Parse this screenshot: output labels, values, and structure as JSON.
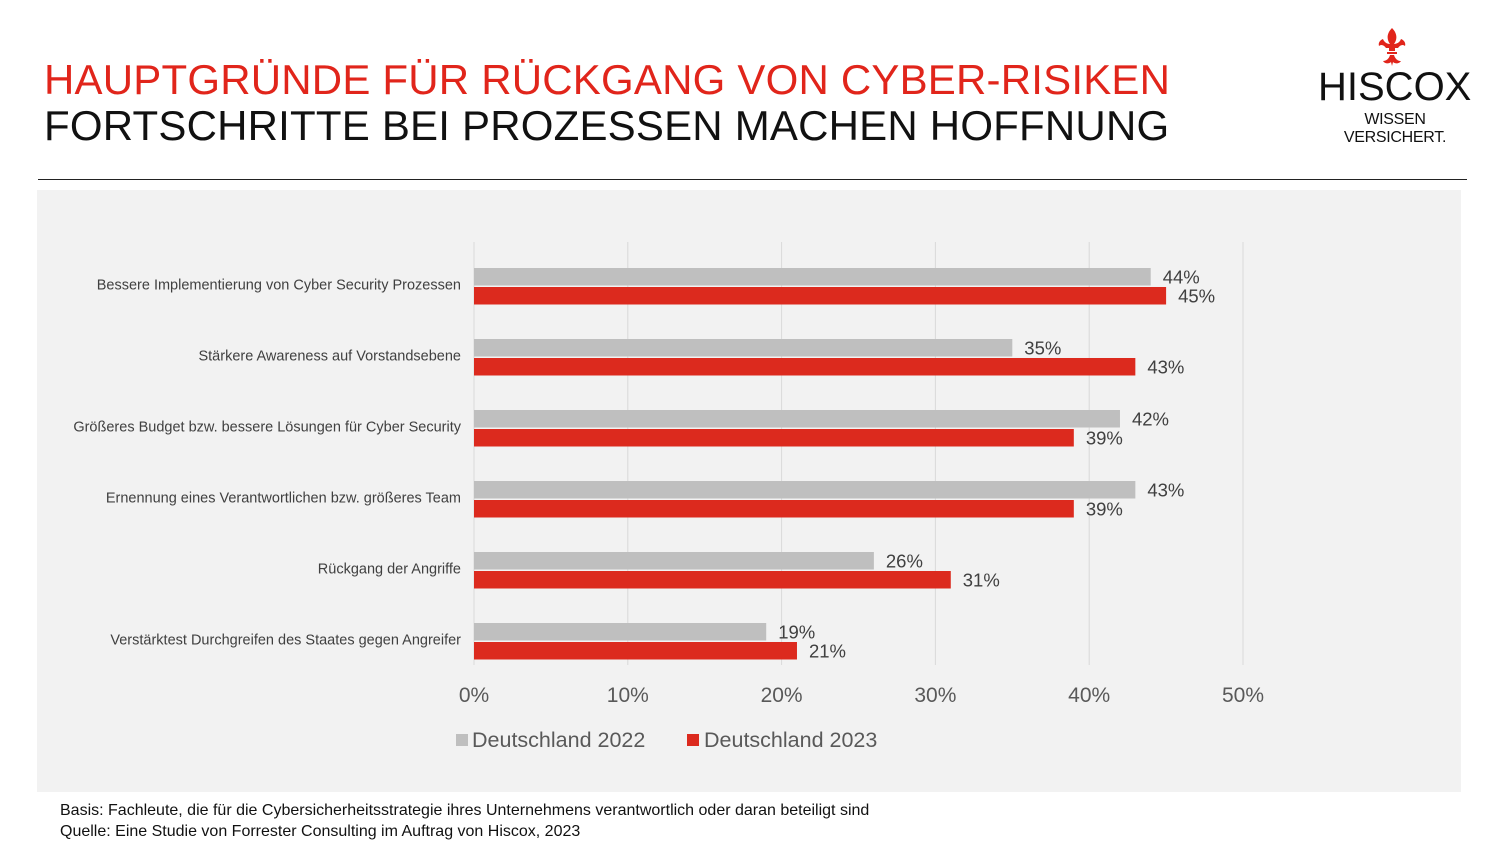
{
  "header": {
    "title_line1": "HAUPTGRÜNDE FÜR RÜCKGANG VON CYBER-RISIKEN",
    "title_line2": "FORTSCHRITTE BEI PROZESSEN MACHEN HOFFNUNG"
  },
  "logo": {
    "brand": "HISCOX",
    "tagline": "WISSEN VERSICHERT.",
    "icon": "fleur-de-lis-icon"
  },
  "colors": {
    "accent": "#e1251b",
    "series_2022": "#bfbfbf",
    "series_2023": "#dc2a1e",
    "panel": "#f2f2f2",
    "text": "#111111"
  },
  "chart_data": {
    "type": "bar",
    "orientation": "horizontal",
    "title": "",
    "xlabel": "",
    "ylabel": "",
    "xlim": [
      0,
      50
    ],
    "ticks": [
      "0%",
      "10%",
      "20%",
      "30%",
      "40%",
      "50%"
    ],
    "tick_values": [
      0,
      10,
      20,
      30,
      40,
      50
    ],
    "grid": true,
    "legend_position": "bottom",
    "categories": [
      "Bessere Implementierung von Cyber Security Prozessen",
      "Stärkere Awareness auf Vorstandsebene",
      "Größeres Budget bzw. bessere Lösungen für Cyber Security",
      "Ernennung eines  Verantwortlichen bzw. größeres Team",
      "Rückgang der Angriffe",
      "Verstärktest Durchgreifen des Staates gegen Angreifer"
    ],
    "series": [
      {
        "name": "Deutschland 2022",
        "color": "#bfbfbf",
        "values": [
          44,
          35,
          42,
          43,
          26,
          19
        ],
        "labels": [
          "44%",
          "35%",
          "42%",
          "43%",
          "26%",
          "19%"
        ]
      },
      {
        "name": "Deutschland 2023",
        "color": "#dc2a1e",
        "values": [
          45,
          43,
          39,
          39,
          31,
          21
        ],
        "labels": [
          "45%",
          "43%",
          "39%",
          "39%",
          "31%",
          "21%"
        ]
      }
    ]
  },
  "footer": {
    "basis": "Basis: Fachleute, die für die Cybersicherheitsstrategie ihres Unternehmens verantwortlich oder daran beteiligt sind",
    "source": "Quelle: Eine Studie von Forrester Consulting im Auftrag von Hiscox, 2023"
  }
}
